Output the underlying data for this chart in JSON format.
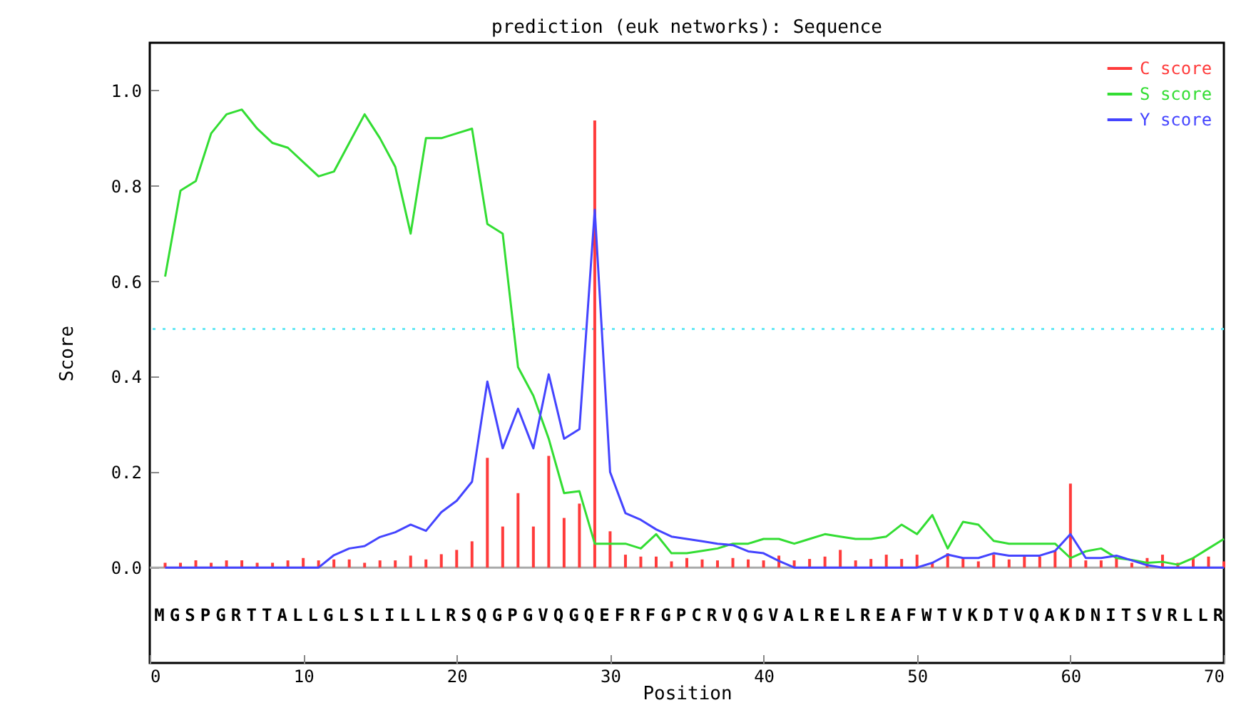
{
  "chart_data": {
    "type": "line",
    "title": "prediction (euk networks): Sequence",
    "xlabel": "Position",
    "ylabel": "Score",
    "x": [
      1,
      2,
      3,
      4,
      5,
      6,
      7,
      8,
      9,
      10,
      11,
      12,
      13,
      14,
      15,
      16,
      17,
      18,
      19,
      20,
      21,
      22,
      23,
      24,
      25,
      26,
      27,
      28,
      29,
      30,
      31,
      32,
      33,
      34,
      35,
      36,
      37,
      38,
      39,
      40,
      41,
      42,
      43,
      44,
      45,
      46,
      47,
      48,
      49,
      50,
      51,
      52,
      53,
      54,
      55,
      56,
      57,
      58,
      59,
      60,
      61,
      62,
      63,
      64,
      65,
      66,
      67,
      68,
      69,
      70
    ],
    "series": [
      {
        "name": "C score",
        "type": "bar",
        "color": "#ff3b3b",
        "values": [
          0.01,
          0.01,
          0.015,
          0.01,
          0.015,
          0.015,
          0.01,
          0.01,
          0.015,
          0.02,
          0.015,
          0.017,
          0.017,
          0.01,
          0.015,
          0.015,
          0.025,
          0.017,
          0.028,
          0.037,
          0.055,
          0.23,
          0.086,
          0.156,
          0.086,
          0.234,
          0.104,
          0.134,
          0.937,
          0.076,
          0.027,
          0.023,
          0.023,
          0.013,
          0.02,
          0.017,
          0.015,
          0.02,
          0.017,
          0.015,
          0.025,
          0.015,
          0.018,
          0.023,
          0.037,
          0.015,
          0.018,
          0.027,
          0.018,
          0.027,
          0.01,
          0.03,
          0.02,
          0.013,
          0.027,
          0.017,
          0.023,
          0.023,
          0.035,
          0.176,
          0.015,
          0.015,
          0.02,
          0.01,
          0.02,
          0.027,
          0.01,
          0.02,
          0.023,
          0.013
        ]
      },
      {
        "name": "S score",
        "color": "#33dd33",
        "values": [
          0.61,
          0.79,
          0.81,
          0.91,
          0.95,
          0.96,
          0.92,
          0.89,
          0.88,
          0.85,
          0.82,
          0.83,
          0.89,
          0.95,
          0.9,
          0.84,
          0.7,
          0.9,
          0.9,
          0.91,
          0.92,
          0.72,
          0.7,
          0.42,
          0.36,
          0.27,
          0.156,
          0.16,
          0.05,
          0.05,
          0.05,
          0.04,
          0.07,
          0.03,
          0.03,
          0.035,
          0.04,
          0.05,
          0.05,
          0.06,
          0.06,
          0.05,
          0.06,
          0.07,
          0.065,
          0.06,
          0.06,
          0.065,
          0.09,
          0.07,
          0.11,
          0.04,
          0.096,
          0.09,
          0.056,
          0.05,
          0.05,
          0.05,
          0.05,
          0.02,
          0.034,
          0.04,
          0.02,
          0.016,
          0.01,
          0.012,
          0.006,
          0.02,
          0.04,
          0.06
        ]
      },
      {
        "name": "Y score",
        "color": "#4444ff",
        "values": [
          0,
          0,
          0,
          0,
          0,
          0,
          0,
          0,
          0,
          0,
          0,
          0.026,
          0.04,
          0.045,
          0.064,
          0.074,
          0.09,
          0.077,
          0.116,
          0.14,
          0.18,
          0.39,
          0.25,
          0.333,
          0.25,
          0.405,
          0.27,
          0.29,
          0.75,
          0.2,
          0.114,
          0.1,
          0.08,
          0.065,
          0.06,
          0.055,
          0.05,
          0.047,
          0.034,
          0.03,
          0.014,
          0,
          0,
          0,
          0,
          0,
          0,
          0,
          0,
          0,
          0.01,
          0.027,
          0.02,
          0.02,
          0.03,
          0.025,
          0.025,
          0.025,
          0.035,
          0.07,
          0.02,
          0.02,
          0.025,
          0.015,
          0.005,
          0,
          0,
          0,
          0,
          0
        ]
      }
    ],
    "xlim": [
      0,
      70
    ],
    "xticks": [
      0,
      10,
      20,
      30,
      40,
      50,
      60,
      70
    ],
    "ylim": [
      -0.2,
      1.1
    ],
    "yticks": [
      {
        "value": 0,
        "label": "0.0"
      },
      {
        "value": 0.2,
        "label": "0.2"
      },
      {
        "value": 0.4,
        "label": "0.4"
      },
      {
        "value": 0.6,
        "label": "0.6"
      },
      {
        "value": 0.8,
        "label": "0.8"
      },
      {
        "value": 1,
        "label": "1.0"
      }
    ],
    "ref_lines": [
      {
        "axis": "y",
        "value": 0.5,
        "color": "#66e8f4",
        "line_style": "dotted"
      },
      {
        "axis": "y",
        "value": 0,
        "color": "#aaaaaa",
        "line_style": "solid"
      }
    ],
    "annotations": [
      "MGSPGRTTALLGLSLILLLRSQGPGVQGQEFRFGPCRVQGVALRELREAFWTVKDTVQAKDNITSVRLLR"
    ],
    "legend": "top right",
    "grid": false
  }
}
